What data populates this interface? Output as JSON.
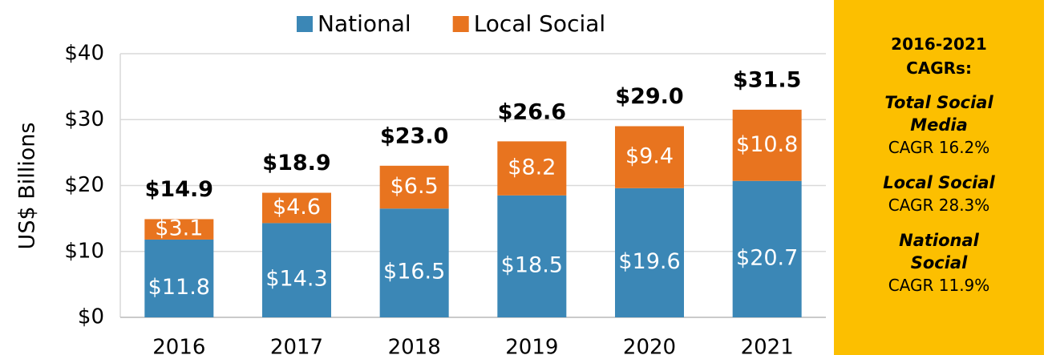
{
  "chart_data": {
    "type": "stacked_bar",
    "y_label": "US$ Billions",
    "categories": [
      "2016",
      "2017",
      "2018",
      "2019",
      "2020",
      "2021"
    ],
    "series": [
      {
        "name": "National",
        "color": "#3b87b6",
        "values": [
          11.8,
          14.3,
          16.5,
          18.5,
          19.6,
          20.7
        ],
        "value_labels": [
          "$11.8",
          "$14.3",
          "$16.5",
          "$18.5",
          "$19.6",
          "$20.7"
        ]
      },
      {
        "name": "Local Social",
        "color": "#e8741f",
        "values": [
          3.1,
          4.6,
          6.5,
          8.2,
          9.4,
          10.8
        ],
        "value_labels": [
          "$3.1",
          "$4.6",
          "$6.5",
          "$8.2",
          "$9.4",
          "$10.8"
        ]
      }
    ],
    "totals": [
      14.9,
      18.9,
      23.0,
      26.6,
      29.0,
      31.5
    ],
    "total_labels": [
      "$14.9",
      "$18.9",
      "$23.0",
      "$26.6",
      "$29.0",
      "$31.5"
    ],
    "ylim": [
      0,
      40
    ],
    "yticks": [
      {
        "value": 0,
        "label": "$0"
      },
      {
        "value": 10,
        "label": "$10"
      },
      {
        "value": 20,
        "label": "$20"
      },
      {
        "value": 30,
        "label": "$30"
      },
      {
        "value": 40,
        "label": "$40"
      }
    ],
    "grid": true,
    "legend": "top",
    "panel": {
      "title": "2016-2021 CAGRs:",
      "items": [
        {
          "name": "Total Social Media",
          "text": "CAGR 16.2%"
        },
        {
          "name": "Local Social",
          "text": "CAGR 28.3%"
        },
        {
          "name": "National Social",
          "text": "CAGR 11.9%"
        }
      ]
    }
  }
}
